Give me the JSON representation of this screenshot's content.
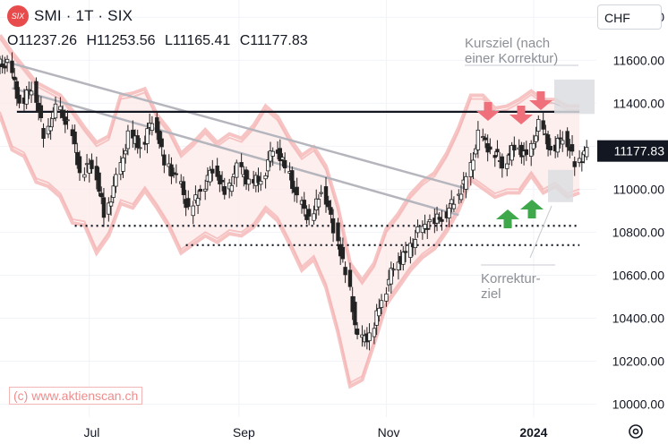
{
  "header": {
    "title": "SMI · 1T · SIX",
    "logo_text": "SIX",
    "ohlc": {
      "open": "O11237.26",
      "high": "H11253.56",
      "low": "L11165.41",
      "close": "C11177.83"
    }
  },
  "currency": "CHF",
  "copyright": "(c) www.aktienscan.ch",
  "annotations": {
    "kursziel": [
      "Kursziel (nach",
      "einer Korrektur)"
    ],
    "korrekturziel": [
      "Korrektur-",
      "ziel"
    ]
  },
  "colors": {
    "up": "#26a69a",
    "down": "#222222",
    "band": "#f5b5b5",
    "band_fill": "#fde8e8",
    "trend": "#b5b5bd",
    "arrow_down": "#ef6f7a",
    "arrow_up": "#3ea84a",
    "price_badge": "#131722"
  },
  "chart_data": {
    "type": "candlestick",
    "title": "SMI · 1T · SIX",
    "y_axis": {
      "ticks": [
        11800,
        11600,
        11400,
        11200,
        11000,
        10800,
        10600,
        10400,
        10200,
        10000
      ],
      "tick_labels": [
        "11800.00",
        "11600.00",
        "11400.00",
        "11200.00",
        "11000.00",
        "10800.00",
        "10600.00",
        "10400.00",
        "10200.00",
        "10000.00"
      ],
      "ylim": [
        9940,
        11880
      ]
    },
    "x_axis": {
      "labels": [
        "Jul",
        "Sep",
        "Nov",
        "2024"
      ],
      "range": [
        "2023-05-25",
        "2024-01-27"
      ]
    },
    "last_price": "11177.83",
    "support_resistance": [
      {
        "level": 11360,
        "style": "solid",
        "from": "2023-06-01",
        "to": "2024-01-20"
      },
      {
        "level": 10830,
        "style": "dotted",
        "from": "2023-06-25",
        "to": "2024-01-20"
      },
      {
        "level": 10740,
        "style": "dotted",
        "from": "2023-08-10",
        "to": "2024-01-20"
      }
    ],
    "trend_lines": [
      {
        "from": [
          "2023-05-25",
          11600
        ],
        "to": [
          "2023-12-05",
          11000
        ]
      },
      {
        "from": [
          "2023-05-30",
          11470
        ],
        "to": [
          "2023-12-01",
          10880
        ]
      }
    ],
    "series": [
      {
        "type": "candles",
        "x": [
          "2023-05-25",
          "2023-05-30",
          "2023-06-04",
          "2023-06-09",
          "2023-06-14",
          "2023-06-19",
          "2023-06-24",
          "2023-06-29",
          "2023-07-04",
          "2023-07-09",
          "2023-07-14",
          "2023-07-19",
          "2023-07-24",
          "2023-07-29",
          "2023-08-03",
          "2023-08-08",
          "2023-08-13",
          "2023-08-18",
          "2023-08-23",
          "2023-08-28",
          "2023-09-02",
          "2023-09-07",
          "2023-09-12",
          "2023-09-17",
          "2023-09-22",
          "2023-09-27",
          "2023-10-02",
          "2023-10-07",
          "2023-10-12",
          "2023-10-17",
          "2023-10-22",
          "2023-10-27",
          "2023-11-01",
          "2023-11-06",
          "2023-11-11",
          "2023-11-16",
          "2023-11-21",
          "2023-11-26",
          "2023-12-01",
          "2023-12-06",
          "2023-12-11",
          "2023-12-16",
          "2023-12-21",
          "2023-12-26",
          "2023-12-31",
          "2024-01-05",
          "2024-01-10",
          "2024-01-15",
          "2024-01-20"
        ],
        "values": [
          11580,
          11400,
          11480,
          11250,
          11380,
          11300,
          11080,
          11120,
          10880,
          11050,
          11250,
          11200,
          11330,
          11120,
          11050,
          10900,
          11000,
          11100,
          10980,
          11100,
          11030,
          11050,
          11200,
          11100,
          10950,
          10860,
          11000,
          10820,
          10600,
          10300,
          10320,
          10500,
          10650,
          10700,
          10800,
          10850,
          10870,
          10950,
          11050,
          11250,
          11180,
          11120,
          11200,
          11150,
          11300,
          11180,
          11250,
          11120,
          11180
        ]
      },
      {
        "type": "upper_band",
        "values": [
          11700,
          11620,
          11550,
          11480,
          11450,
          11420,
          11350,
          11270,
          11200,
          11230,
          11420,
          11430,
          11450,
          11330,
          11260,
          11150,
          11200,
          11260,
          11200,
          11240,
          11220,
          11280,
          11370,
          11320,
          11220,
          11140,
          11180,
          11090,
          10900,
          10640,
          10560,
          10640,
          10800,
          10870,
          10960,
          11020,
          11060,
          11150,
          11270,
          11420,
          11420,
          11360,
          11370,
          11400,
          11440,
          11400,
          11400,
          11370,
          11370
        ]
      },
      {
        "type": "lower_band",
        "values": [
          11360,
          11200,
          11170,
          11050,
          11030,
          10980,
          10860,
          10850,
          10720,
          10800,
          10950,
          10930,
          11010,
          10930,
          10840,
          10720,
          10760,
          10800,
          10770,
          10810,
          10800,
          10840,
          10920,
          10870,
          10760,
          10640,
          10690,
          10560,
          10350,
          10100,
          10130,
          10300,
          10480,
          10560,
          10640,
          10700,
          10740,
          10820,
          10920,
          11060,
          11020,
          10980,
          11000,
          11000,
          11080,
          11000,
          11030,
          10980,
          11000
        ]
      }
    ]
  }
}
